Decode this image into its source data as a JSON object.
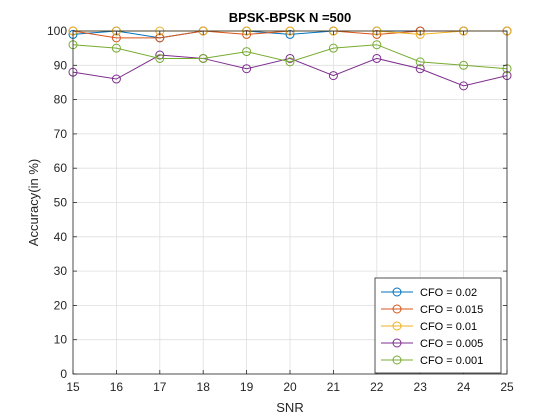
{
  "chart_data": {
    "type": "line",
    "title": "BPSK-BPSK N =500",
    "xlabel": "SNR",
    "ylabel": "Accuracy(in %)",
    "xlim": [
      15,
      25
    ],
    "ylim": [
      0,
      100
    ],
    "xticks": [
      15,
      16,
      17,
      18,
      19,
      20,
      21,
      22,
      23,
      24,
      25
    ],
    "yticks": [
      0,
      10,
      20,
      30,
      40,
      50,
      60,
      70,
      80,
      90,
      100
    ],
    "grid": true,
    "legend_position": "bottom-right",
    "x": [
      15,
      16,
      17,
      18,
      19,
      20,
      21,
      22,
      23,
      24,
      25
    ],
    "series": [
      {
        "name": "CFO = 0.02",
        "color": "#0072BD",
        "marker": "circle",
        "values": [
          99,
          100,
          98,
          100,
          100,
          99,
          100,
          100,
          100,
          100,
          100
        ]
      },
      {
        "name": "CFO = 0.015",
        "color": "#D95319",
        "marker": "circle",
        "values": [
          100,
          98,
          98,
          100,
          99,
          100,
          100,
          99,
          100,
          100,
          100
        ]
      },
      {
        "name": "CFO = 0.01",
        "color": "#EDB120",
        "marker": "circle",
        "values": [
          100,
          100,
          100,
          100,
          100,
          100,
          100,
          100,
          99,
          100,
          100
        ]
      },
      {
        "name": "CFO = 0.005",
        "color": "#7E2F8E",
        "marker": "circle",
        "values": [
          88,
          86,
          93,
          92,
          89,
          92,
          87,
          92,
          89,
          84,
          87
        ]
      },
      {
        "name": "CFO = 0.001",
        "color": "#77AC30",
        "marker": "circle",
        "values": [
          96,
          95,
          92,
          92,
          94,
          91,
          95,
          96,
          91,
          90,
          89
        ]
      }
    ]
  }
}
